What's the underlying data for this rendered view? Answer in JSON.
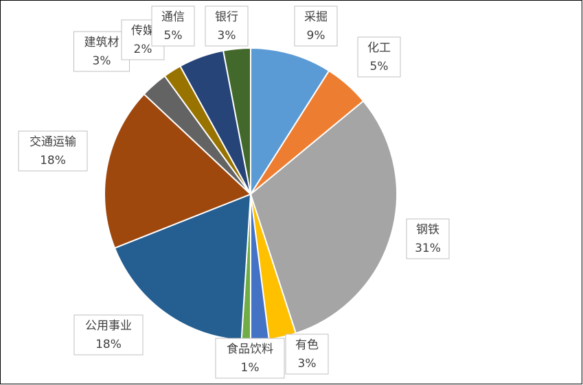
{
  "chart_data": {
    "type": "pie",
    "categories": [
      "采掘",
      "化工",
      "钢铁",
      "有色",
      null,
      "食品饮料",
      "公用事业",
      "交通运输",
      "建筑材",
      "传媒",
      "通信",
      "银行"
    ],
    "values": [
      9,
      5,
      31,
      3,
      2,
      1,
      18,
      18,
      3,
      2,
      5,
      3
    ],
    "value_labels": [
      "9%",
      "5%",
      "31%",
      "3%",
      null,
      "1%",
      "18%",
      "18%",
      "3%",
      "2%",
      "5%",
      "3%"
    ],
    "colors": [
      "#5b9bd5",
      "#ed7d31",
      "#a5a5a5",
      "#ffc000",
      "#4472c4",
      "#70ad47",
      "#255e91",
      "#9e480e",
      "#636363",
      "#997300",
      "#264478",
      "#43682b"
    ]
  }
}
